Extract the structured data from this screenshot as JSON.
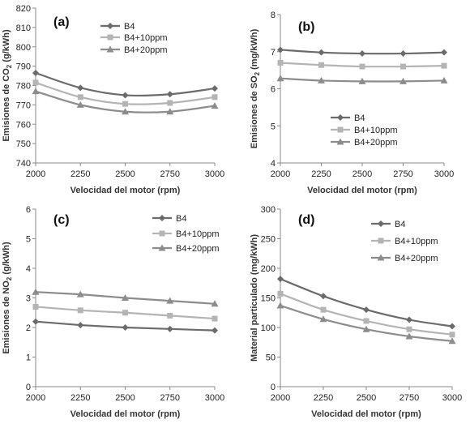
{
  "chart_data": [
    {
      "type": "line",
      "panel_label": "(a)",
      "xlabel": "Velocidad del motor (rpm)",
      "ylabel_parts": [
        "Emisiones de CO",
        "2",
        " (g/kWh)"
      ],
      "x": [
        2000,
        2250,
        2500,
        2750,
        3000
      ],
      "xlim": [
        2000,
        3000
      ],
      "xticks": [
        "2000",
        "2250",
        "2500",
        "2750",
        "3000"
      ],
      "ylim": [
        740,
        820
      ],
      "yticks": [
        "740",
        "750",
        "760",
        "770",
        "780",
        "790",
        "800",
        "810",
        "820"
      ],
      "smooth": true,
      "legend_position": "top-center",
      "series": [
        {
          "name": "B4",
          "color": "#6b6b6b",
          "marker": "diamond",
          "values": [
            786.5,
            778.8,
            775.0,
            775.5,
            778.5
          ]
        },
        {
          "name": "B4+10ppm",
          "color": "#b4b4b4",
          "marker": "square",
          "values": [
            781.5,
            774.0,
            770.5,
            771.0,
            774.0
          ]
        },
        {
          "name": "B4+20ppm",
          "color": "#8c8c8c",
          "marker": "triangle",
          "values": [
            777.0,
            770.0,
            766.5,
            766.5,
            769.5
          ]
        }
      ]
    },
    {
      "type": "line",
      "panel_label": "(b)",
      "xlabel": "Velocidad del motor (rpm)",
      "ylabel_parts": [
        "Emisiones de SO",
        "2",
        " (mg/kWh)"
      ],
      "x": [
        2000,
        2250,
        2500,
        2750,
        3000
      ],
      "xlim": [
        2000,
        3000
      ],
      "xticks": [
        "2000",
        "2250",
        "2500",
        "2750",
        "3000"
      ],
      "ylim": [
        4,
        8
      ],
      "yticks": [
        "4",
        "5",
        "6",
        "7",
        "8"
      ],
      "smooth": true,
      "legend_position": "bottom-center",
      "series": [
        {
          "name": "B4",
          "color": "#6b6b6b",
          "marker": "diamond",
          "values": [
            7.05,
            6.98,
            6.95,
            6.95,
            6.98
          ]
        },
        {
          "name": "B4+10ppm",
          "color": "#b4b4b4",
          "marker": "square",
          "values": [
            6.7,
            6.64,
            6.6,
            6.6,
            6.62
          ]
        },
        {
          "name": "B4+20ppm",
          "color": "#8c8c8c",
          "marker": "triangle",
          "values": [
            6.28,
            6.22,
            6.2,
            6.2,
            6.22
          ]
        }
      ]
    },
    {
      "type": "line",
      "panel_label": "(c)",
      "xlabel": "Velocidad del motor (rpm)",
      "ylabel_parts": [
        "Emisiones de NO",
        "2",
        " (g/kWh)"
      ],
      "x": [
        2000,
        2250,
        2500,
        2750,
        3000
      ],
      "xlim": [
        2000,
        3000
      ],
      "xticks": [
        "2000",
        "2250",
        "2500",
        "2750",
        "3000"
      ],
      "ylim": [
        0,
        6
      ],
      "yticks": [
        "0",
        "1",
        "2",
        "3",
        "4",
        "5",
        "6"
      ],
      "smooth": false,
      "legend_position": "top-center",
      "series": [
        {
          "name": "B4",
          "color": "#6b6b6b",
          "marker": "diamond",
          "values": [
            2.2,
            2.08,
            2.0,
            1.95,
            1.9
          ]
        },
        {
          "name": "B4+10ppm",
          "color": "#b4b4b4",
          "marker": "square",
          "values": [
            2.7,
            2.58,
            2.5,
            2.4,
            2.3
          ]
        },
        {
          "name": "B4+20ppm",
          "color": "#8c8c8c",
          "marker": "triangle",
          "values": [
            3.2,
            3.12,
            3.0,
            2.9,
            2.8
          ]
        }
      ]
    },
    {
      "type": "line",
      "panel_label": "(d)",
      "xlabel": "Velocidad del motor (rpm)",
      "ylabel_parts": [
        "Material particulado (mg/kWh)"
      ],
      "x": [
        2000,
        2250,
        2500,
        2750,
        3000
      ],
      "xlim": [
        2000,
        3000
      ],
      "xticks": [
        "2000",
        "2250",
        "2500",
        "2750",
        "3000"
      ],
      "ylim": [
        0,
        300
      ],
      "yticks": [
        "0",
        "50",
        "100",
        "150",
        "200",
        "250",
        "300"
      ],
      "smooth": true,
      "legend_position": "top-center",
      "series": [
        {
          "name": "B4",
          "color": "#6b6b6b",
          "marker": "diamond",
          "values": [
            182,
            153,
            130,
            113,
            102
          ]
        },
        {
          "name": "B4+10ppm",
          "color": "#b4b4b4",
          "marker": "square",
          "values": [
            157,
            130,
            111,
            97,
            88
          ]
        },
        {
          "name": "B4+20ppm",
          "color": "#8c8c8c",
          "marker": "triangle",
          "values": [
            137,
            114,
            97,
            85,
            77
          ]
        }
      ]
    }
  ]
}
